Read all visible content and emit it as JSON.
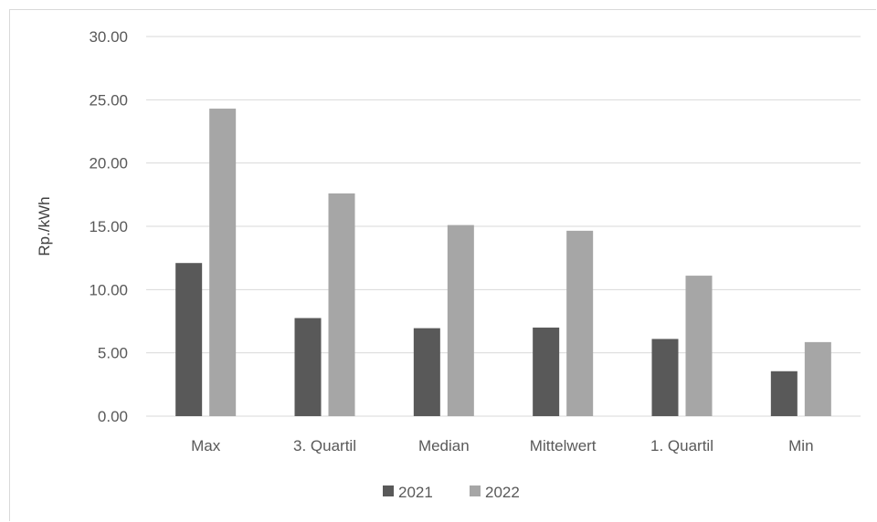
{
  "chart_data": {
    "type": "bar",
    "title": "",
    "xlabel": "",
    "ylabel": "Rp./kWh",
    "categories": [
      "Max",
      "3. Quartil",
      "Median",
      "Mittelwert",
      "1. Quartil",
      "Min"
    ],
    "series": [
      {
        "name": "2021",
        "color": "#595959",
        "values": [
          12.1,
          7.75,
          6.95,
          7.0,
          6.1,
          3.55
        ]
      },
      {
        "name": "2022",
        "color": "#a6a6a6",
        "values": [
          24.3,
          17.6,
          15.1,
          14.65,
          11.1,
          5.85
        ]
      }
    ],
    "ylim": [
      0,
      30
    ],
    "yticks": [
      "0.00",
      "5.00",
      "10.00",
      "15.00",
      "20.00",
      "25.00",
      "30.00"
    ],
    "grid": true,
    "legend_position": "bottom",
    "colors": {
      "gridline": "#d9d9d9",
      "text": "#595959"
    }
  }
}
